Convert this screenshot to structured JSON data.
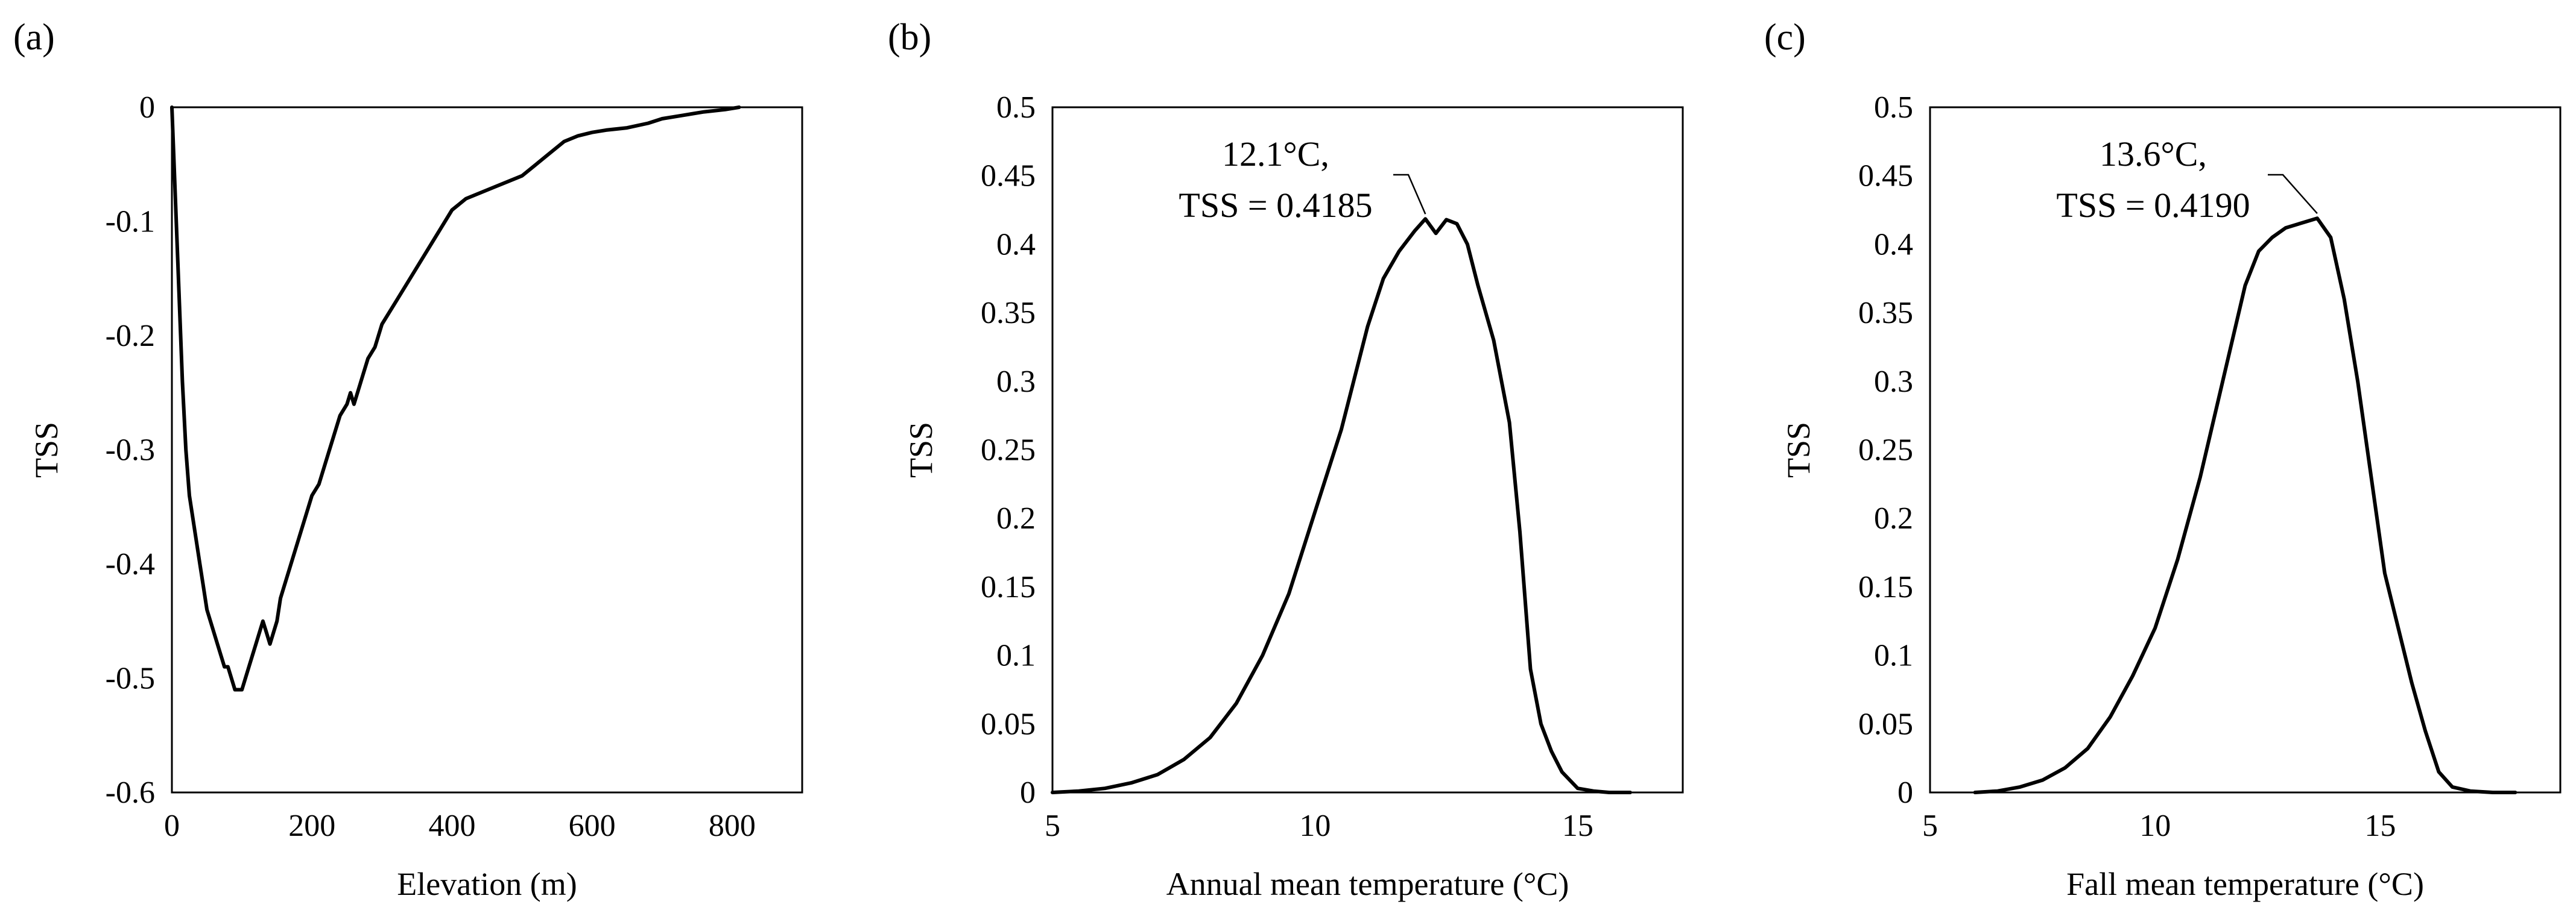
{
  "chart_data": [
    {
      "panel": "(a)",
      "type": "line",
      "xlabel": "Elevation (m)",
      "ylabel": "TSS",
      "xlim": [
        0,
        900
      ],
      "ylim": [
        -0.6,
        0
      ],
      "xticks": [
        0,
        200,
        400,
        600,
        800
      ],
      "xtick_labels": [
        "0",
        "200",
        "400",
        "600",
        "800"
      ],
      "yticks": [
        0,
        -0.1,
        -0.2,
        -0.3,
        -0.4,
        -0.5,
        -0.6
      ],
      "ytick_labels": [
        "0",
        "-0.1",
        "-0.2",
        "-0.3",
        "-0.4",
        "-0.5",
        "-0.6"
      ],
      "series": [
        {
          "name": "TSS",
          "x": [
            0,
            5,
            10,
            15,
            20,
            25,
            30,
            35,
            40,
            45,
            50,
            55,
            60,
            65,
            70,
            75,
            80,
            85,
            90,
            95,
            100,
            105,
            110,
            115,
            120,
            125,
            130,
            135,
            140,
            145,
            150,
            155,
            160,
            170,
            180,
            190,
            200,
            210,
            220,
            230,
            240,
            250,
            255,
            260,
            270,
            280,
            290,
            300,
            320,
            340,
            360,
            380,
            400,
            420,
            440,
            460,
            480,
            500,
            520,
            540,
            560,
            580,
            600,
            620,
            650,
            680,
            700,
            730,
            760,
            790,
            810
          ],
          "y": [
            0,
            -0.08,
            -0.16,
            -0.24,
            -0.3,
            -0.34,
            -0.36,
            -0.38,
            -0.4,
            -0.42,
            -0.44,
            -0.45,
            -0.46,
            -0.47,
            -0.48,
            -0.49,
            -0.49,
            -0.5,
            -0.51,
            -0.51,
            -0.51,
            -0.5,
            -0.49,
            -0.48,
            -0.47,
            -0.46,
            -0.45,
            -0.46,
            -0.47,
            -0.46,
            -0.45,
            -0.43,
            -0.42,
            -0.4,
            -0.38,
            -0.36,
            -0.34,
            -0.33,
            -0.31,
            -0.29,
            -0.27,
            -0.26,
            -0.25,
            -0.26,
            -0.24,
            -0.22,
            -0.21,
            -0.19,
            -0.17,
            -0.15,
            -0.13,
            -0.11,
            -0.09,
            -0.08,
            -0.075,
            -0.07,
            -0.065,
            -0.06,
            -0.05,
            -0.04,
            -0.03,
            -0.025,
            -0.022,
            -0.02,
            -0.018,
            -0.014,
            -0.01,
            -0.007,
            -0.004,
            -0.002,
            0
          ]
        }
      ]
    },
    {
      "panel": "(b)",
      "type": "line",
      "xlabel": "Annual mean temperature (°C)",
      "ylabel": "TSS",
      "xlim": [
        5,
        17
      ],
      "ylim": [
        0,
        0.5
      ],
      "xticks": [
        5,
        10,
        15
      ],
      "xtick_labels": [
        "5",
        "10",
        "15"
      ],
      "yticks": [
        0,
        0.05,
        0.1,
        0.15,
        0.2,
        0.25,
        0.3,
        0.35,
        0.4,
        0.45,
        0.5
      ],
      "ytick_labels": [
        "0",
        "0.05",
        "0.1",
        "0.15",
        "0.2",
        "0.25",
        "0.3",
        "0.35",
        "0.4",
        "0.45",
        "0.5"
      ],
      "annotation": {
        "line1": "12.1°C,",
        "line2": "TSS = 0.4185",
        "x": 12.1,
        "y": 0.4185
      },
      "series": [
        {
          "name": "TSS",
          "x": [
            5,
            5.5,
            6,
            6.5,
            7,
            7.5,
            8,
            8.5,
            9,
            9.5,
            10,
            10.5,
            11,
            11.3,
            11.6,
            11.9,
            12.1,
            12.3,
            12.5,
            12.7,
            12.9,
            13.1,
            13.4,
            13.7,
            13.9,
            14.1,
            14.3,
            14.5,
            14.7,
            15,
            15.3,
            15.6,
            16
          ],
          "y": [
            0,
            0.001,
            0.003,
            0.007,
            0.013,
            0.024,
            0.04,
            0.065,
            0.1,
            0.145,
            0.205,
            0.265,
            0.34,
            0.375,
            0.395,
            0.41,
            0.4185,
            0.408,
            0.418,
            0.415,
            0.4,
            0.37,
            0.33,
            0.27,
            0.19,
            0.09,
            0.05,
            0.03,
            0.015,
            0.003,
            0.001,
            0,
            0
          ]
        }
      ]
    },
    {
      "panel": "(c)",
      "type": "line",
      "xlabel": "Fall mean temperature (°C)",
      "ylabel": "TSS",
      "xlim": [
        5,
        19
      ],
      "ylim": [
        0,
        0.5
      ],
      "xticks": [
        5,
        10,
        15
      ],
      "xtick_labels": [
        "5",
        "10",
        "15"
      ],
      "yticks": [
        0,
        0.05,
        0.1,
        0.15,
        0.2,
        0.25,
        0.3,
        0.35,
        0.4,
        0.45,
        0.5
      ],
      "ytick_labels": [
        "0",
        "0.05",
        "0.1",
        "0.15",
        "0.2",
        "0.25",
        "0.3",
        "0.35",
        "0.4",
        "0.45",
        "0.5"
      ],
      "annotation": {
        "line1": "13.6°C,",
        "line2": "TSS = 0.4190",
        "x": 13.6,
        "y": 0.419
      },
      "series": [
        {
          "name": "TSS",
          "x": [
            6,
            6.5,
            7,
            7.5,
            8,
            8.5,
            9,
            9.5,
            10,
            10.5,
            11,
            11.5,
            12,
            12.3,
            12.6,
            12.9,
            13.2,
            13.6,
            13.9,
            14.2,
            14.5,
            14.8,
            15.1,
            15.4,
            15.7,
            16,
            16.3,
            16.6,
            17,
            17.5,
            18
          ],
          "y": [
            0,
            0.001,
            0.004,
            0.009,
            0.018,
            0.032,
            0.055,
            0.085,
            0.12,
            0.17,
            0.23,
            0.3,
            0.37,
            0.395,
            0.405,
            0.412,
            0.415,
            0.419,
            0.405,
            0.36,
            0.3,
            0.23,
            0.16,
            0.12,
            0.08,
            0.045,
            0.015,
            0.004,
            0.001,
            0,
            0
          ]
        }
      ]
    }
  ]
}
